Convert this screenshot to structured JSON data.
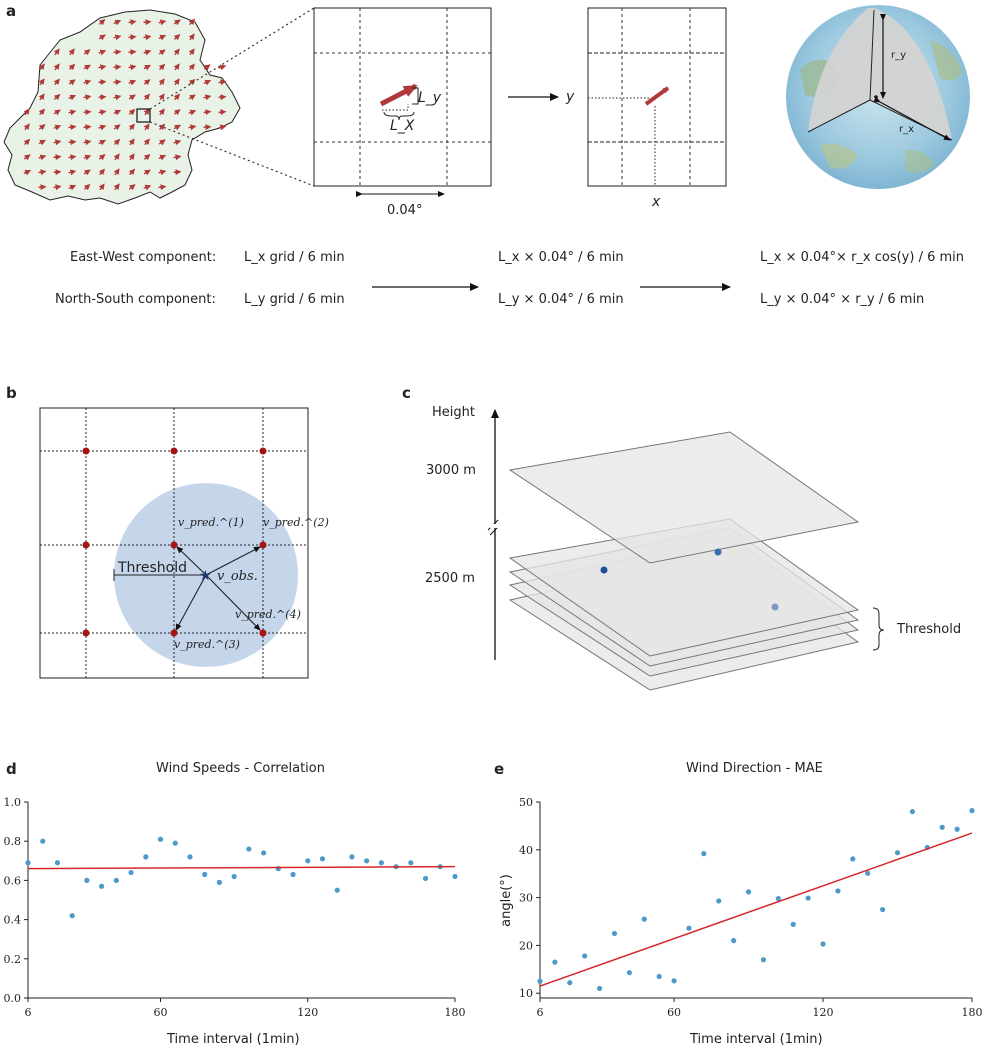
{
  "panel_a": {
    "letter": "a",
    "grid_step": "0.04°",
    "label_lx": "L_X",
    "label_ly": "L_y",
    "axis_y": "y",
    "axis_x": "x",
    "label_ry": "r_y",
    "label_rx": "r_x",
    "rows": [
      {
        "name": "East-West  component:",
        "grid": "L_x grid / 6 min",
        "degree": "L_x × 0.04° / 6 min",
        "metric": "L_x × 0.04°× r_x cos(y) / 6 min"
      },
      {
        "name": "North-South  component:",
        "grid": "L_y grid / 6 min",
        "degree": "L_y × 0.04° / 6 min",
        "metric": "L_y × 0.04° × r_y / 6 min"
      }
    ]
  },
  "panel_b": {
    "letter": "b",
    "threshold": "Threshold",
    "v_obs": "v_obs.",
    "v_pred_1": "v_pred.^(1)",
    "v_pred_2": "v_pred.^(2)",
    "v_pred_3": "v_pred.^(3)",
    "v_pred_4": "v_pred.^(4)"
  },
  "panel_c": {
    "letter": "c",
    "axis_title": "Height",
    "level_high": "3000 m",
    "level_low": "2500 m",
    "threshold": "Threshold"
  },
  "colors": {
    "red_line": "#d62728",
    "scatter": "#4c9ac9",
    "arrow": "#b03a3a",
    "circle_fill": "#c5d6ea",
    "grid_point": "#a31515",
    "plane_fill": "#e6e6e6"
  },
  "chart_data": [
    {
      "type": "scatter",
      "panel": "d",
      "title": "Wind Speeds - Correlation",
      "xlabel": "Time interval (1min)",
      "ylabel": "",
      "xlim": [
        6,
        180
      ],
      "ylim": [
        0.0,
        1.0
      ],
      "xticks": [
        "6",
        "60",
        "120",
        "180"
      ],
      "yticks": [
        "0.0",
        "0.2",
        "0.4",
        "0.6",
        "0.8",
        "1.0"
      ],
      "x": [
        6,
        12,
        18,
        24,
        30,
        36,
        42,
        48,
        54,
        60,
        66,
        72,
        78,
        84,
        90,
        96,
        102,
        108,
        114,
        120,
        126,
        132,
        138,
        144,
        150,
        156,
        162,
        168,
        174,
        180
      ],
      "values": [
        0.69,
        0.8,
        0.69,
        0.42,
        0.6,
        0.57,
        0.6,
        0.64,
        0.72,
        0.81,
        0.79,
        0.72,
        0.63,
        0.59,
        0.62,
        0.76,
        0.74,
        0.66,
        0.63,
        0.7,
        0.71,
        0.55,
        0.72,
        0.7,
        0.69,
        0.67,
        0.69,
        0.61,
        0.67,
        0.62
      ],
      "fit_line": [
        0.66,
        0.67
      ]
    },
    {
      "type": "scatter",
      "panel": "e",
      "title": "Wind Direction - MAE",
      "xlabel": "Time interval (1min)",
      "ylabel": "angle(°)",
      "xlim": [
        6,
        180
      ],
      "ylim": [
        9,
        50
      ],
      "xticks": [
        "6",
        "60",
        "120",
        "180"
      ],
      "yticks": [
        "10",
        "20",
        "30",
        "40",
        "50"
      ],
      "x": [
        6,
        12,
        18,
        24,
        30,
        36,
        42,
        48,
        54,
        60,
        66,
        72,
        78,
        84,
        90,
        96,
        102,
        108,
        114,
        120,
        126,
        132,
        138,
        144,
        150,
        156,
        162,
        168,
        174,
        180
      ],
      "values": [
        12.5,
        16.5,
        12.2,
        17.8,
        11,
        22.5,
        14.3,
        25.5,
        13.5,
        12.6,
        23.6,
        39.2,
        29.3,
        21,
        31.2,
        17,
        29.8,
        24.4,
        29.9,
        20.3,
        31.4,
        38.1,
        35.1,
        27.5,
        39.4,
        48,
        40.5,
        44.7,
        44.3,
        48.2
      ],
      "fit_line": [
        11.5,
        43.5
      ]
    }
  ]
}
